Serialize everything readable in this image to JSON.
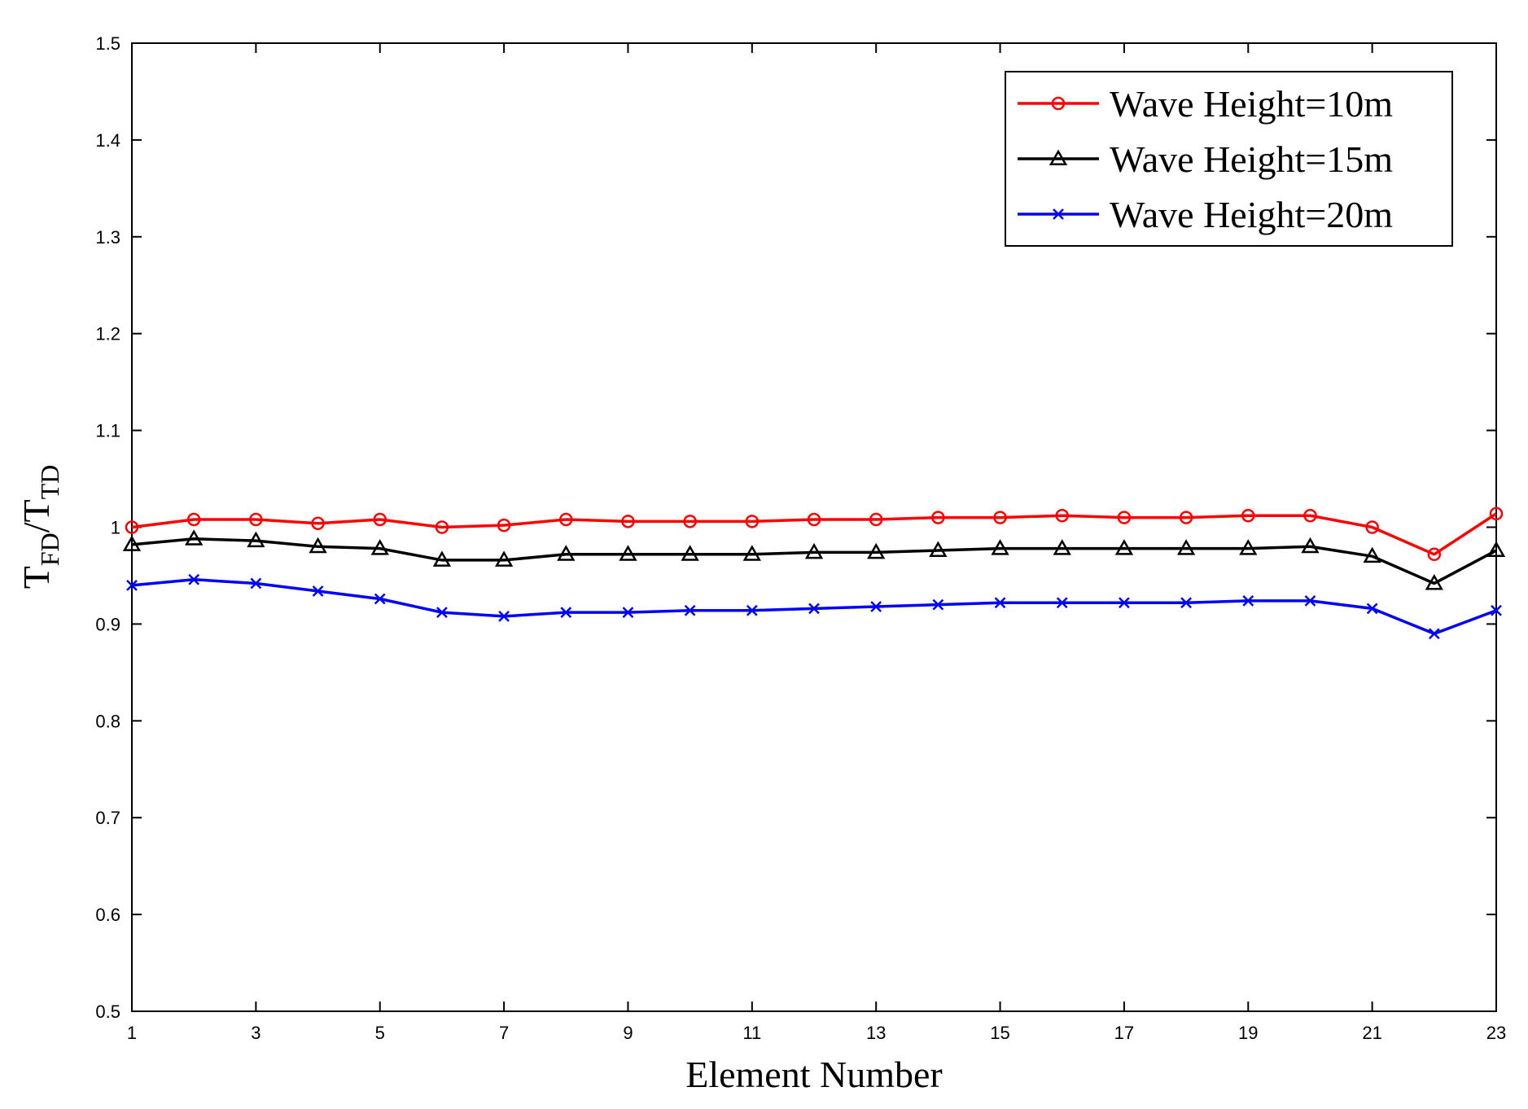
{
  "chart_data": {
    "type": "line",
    "title": "",
    "xlabel": "Element Number",
    "ylabel": {
      "main": "T",
      "sub1": "FD",
      "sep": "/",
      "main2": "T",
      "sub2": "TD"
    },
    "xlim": [
      1,
      23
    ],
    "ylim": [
      0.5,
      1.5
    ],
    "x_ticks": [
      1,
      3,
      5,
      7,
      9,
      11,
      13,
      15,
      17,
      19,
      21,
      23
    ],
    "y_ticks": [
      0.5,
      0.6,
      0.7,
      0.8,
      0.9,
      1,
      1.1,
      1.2,
      1.3,
      1.4,
      1.5
    ],
    "y_tick_labels": [
      "0.5",
      "0.6",
      "0.7",
      "0.8",
      "0.9",
      "1",
      "1.1",
      "1.2",
      "1.3",
      "1.4",
      "1.5"
    ],
    "grid": false,
    "legend_position": "top-right",
    "x": [
      1,
      2,
      3,
      4,
      5,
      6,
      7,
      8,
      9,
      10,
      11,
      12,
      13,
      14,
      15,
      16,
      17,
      18,
      19,
      20,
      21,
      22,
      23
    ],
    "series": [
      {
        "name": "Wave Height=10m",
        "color": "#ff0000",
        "marker": "circle",
        "values": [
          1.0,
          1.008,
          1.008,
          1.004,
          1.008,
          1.0,
          1.002,
          1.008,
          1.006,
          1.006,
          1.006,
          1.008,
          1.008,
          1.01,
          1.01,
          1.012,
          1.01,
          1.01,
          1.012,
          1.012,
          1.0,
          0.972,
          1.014
        ]
      },
      {
        "name": "Wave Height=15m",
        "color": "#000000",
        "marker": "triangle",
        "values": [
          0.982,
          0.988,
          0.986,
          0.98,
          0.978,
          0.966,
          0.966,
          0.972,
          0.972,
          0.972,
          0.972,
          0.974,
          0.974,
          0.976,
          0.978,
          0.978,
          0.978,
          0.978,
          0.978,
          0.98,
          0.97,
          0.942,
          0.976
        ]
      },
      {
        "name": "Wave Height=20m",
        "color": "#0000ff",
        "marker": "x",
        "values": [
          0.94,
          0.946,
          0.942,
          0.934,
          0.926,
          0.912,
          0.908,
          0.912,
          0.912,
          0.914,
          0.914,
          0.916,
          0.918,
          0.92,
          0.922,
          0.922,
          0.922,
          0.922,
          0.924,
          0.924,
          0.916,
          0.89,
          0.914
        ]
      }
    ]
  }
}
